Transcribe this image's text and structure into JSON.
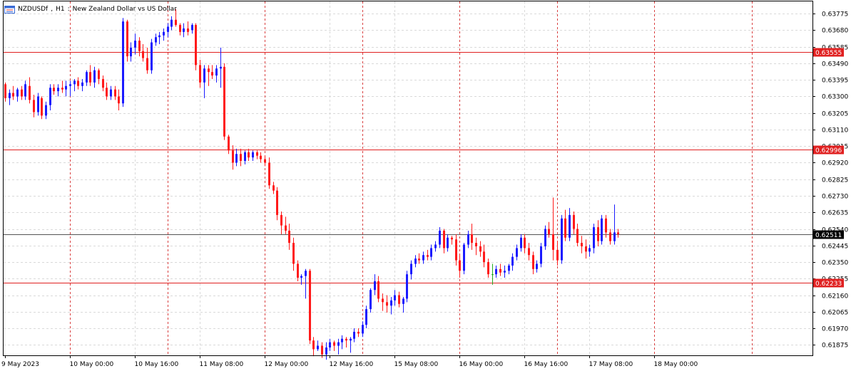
{
  "title": {
    "symbol": "NZDUSDf",
    "timeframe": "H1",
    "description": "New Zealand Dollar vs US Dollar"
  },
  "colors": {
    "bull": "#1a1aff",
    "bear": "#ff1a1a",
    "doji": "#22aa22",
    "grid": "#d9d9d9",
    "session_line": "#d94040",
    "level_line": "#e02020",
    "level_tag": "#e02020",
    "current_line": "#555555",
    "current_tag": "#000000"
  },
  "chart_data": {
    "type": "candlestick",
    "symbol": "NZDUSDf",
    "timeframe": "H1",
    "ylim": [
      0.61815,
      0.63845
    ],
    "y_ticks": [
      "0.63775",
      "0.63680",
      "0.63585",
      "0.63490",
      "0.63395",
      "0.63300",
      "0.63205",
      "0.63110",
      "0.63015",
      "0.62920",
      "0.62825",
      "0.62730",
      "0.62635",
      "0.62540",
      "0.62445",
      "0.62350",
      "0.62255",
      "0.62160",
      "0.62065",
      "0.61970",
      "0.61875"
    ],
    "x_ticks": [
      {
        "label": "9 May 2023",
        "bar": 0
      },
      {
        "label": "10 May 00:00",
        "bar": 16
      },
      {
        "label": "10 May 16:00",
        "bar": 32
      },
      {
        "label": "11 May 08:00",
        "bar": 48
      },
      {
        "label": "12 May 00:00",
        "bar": 64
      },
      {
        "label": "12 May 16:00",
        "bar": 80
      },
      {
        "label": "15 May 08:00",
        "bar": 96
      },
      {
        "label": "16 May 00:00",
        "bar": 112
      },
      {
        "label": "16 May 16:00",
        "bar": 128
      },
      {
        "label": "17 May 08:00",
        "bar": 144
      },
      {
        "label": "18 May 00:00",
        "bar": 160
      }
    ],
    "session_separators": [
      16,
      40,
      64,
      88,
      112,
      136,
      160,
      184
    ],
    "horizontal_levels": [
      {
        "label": "0.63555",
        "value": 0.63555
      },
      {
        "label": "0.62996",
        "value": 0.62996
      },
      {
        "label": "0.62233",
        "value": 0.62233
      }
    ],
    "current_price": {
      "label": "0.62511",
      "value": 0.62511
    },
    "candles": [
      [
        0.6337,
        0.6338,
        0.6327,
        0.6329
      ],
      [
        0.6329,
        0.6334,
        0.6325,
        0.6332
      ],
      [
        0.6332,
        0.6336,
        0.6328,
        0.633
      ],
      [
        0.633,
        0.6335,
        0.6327,
        0.6334
      ],
      [
        0.6334,
        0.6336,
        0.6328,
        0.633
      ],
      [
        0.633,
        0.6339,
        0.6328,
        0.6337
      ],
      [
        0.6336,
        0.6341,
        0.6326,
        0.6328
      ],
      [
        0.6328,
        0.6331,
        0.6318,
        0.6321
      ],
      [
        0.6321,
        0.6332,
        0.6319,
        0.633
      ],
      [
        0.6329,
        0.633,
        0.6317,
        0.6319
      ],
      [
        0.6319,
        0.6327,
        0.6317,
        0.6325
      ],
      [
        0.6325,
        0.6337,
        0.6322,
        0.6335
      ],
      [
        0.6335,
        0.6337,
        0.6331,
        0.6333
      ],
      [
        0.6333,
        0.6337,
        0.633,
        0.6335
      ],
      [
        0.6335,
        0.6339,
        0.6332,
        0.6334
      ],
      [
        0.6334,
        0.6339,
        0.633,
        0.6336
      ],
      [
        0.6336,
        0.6339,
        0.633,
        0.6337
      ],
      [
        0.6337,
        0.634,
        0.6333,
        0.6339
      ],
      [
        0.6339,
        0.6341,
        0.6334,
        0.6336
      ],
      [
        0.6336,
        0.634,
        0.6333,
        0.6338
      ],
      [
        0.6338,
        0.6345,
        0.6336,
        0.6344
      ],
      [
        0.6344,
        0.6348,
        0.6336,
        0.6338
      ],
      [
        0.6338,
        0.6347,
        0.6335,
        0.6345
      ],
      [
        0.6345,
        0.6346,
        0.6337,
        0.634
      ],
      [
        0.634,
        0.6342,
        0.6333,
        0.6335
      ],
      [
        0.6335,
        0.6338,
        0.6328,
        0.633
      ],
      [
        0.633,
        0.6336,
        0.6328,
        0.6334
      ],
      [
        0.6334,
        0.6336,
        0.6328,
        0.633
      ],
      [
        0.633,
        0.6334,
        0.6322,
        0.6326
      ],
      [
        0.6326,
        0.6375,
        0.6324,
        0.6373
      ],
      [
        0.6373,
        0.6374,
        0.635,
        0.6353
      ],
      [
        0.6353,
        0.6361,
        0.635,
        0.6358
      ],
      [
        0.6358,
        0.6366,
        0.6354,
        0.6362
      ],
      [
        0.6362,
        0.6364,
        0.6353,
        0.6356
      ],
      [
        0.6356,
        0.636,
        0.635,
        0.6352
      ],
      [
        0.6352,
        0.6358,
        0.6343,
        0.6345
      ],
      [
        0.6345,
        0.6363,
        0.6343,
        0.6361
      ],
      [
        0.6361,
        0.6366,
        0.6359,
        0.6364
      ],
      [
        0.6364,
        0.6367,
        0.636,
        0.6365
      ],
      [
        0.6365,
        0.6369,
        0.6362,
        0.6367
      ],
      [
        0.6367,
        0.6372,
        0.6364,
        0.637
      ],
      [
        0.637,
        0.6376,
        0.6368,
        0.6374
      ],
      [
        0.6374,
        0.638,
        0.637,
        0.6371
      ],
      [
        0.6371,
        0.6372,
        0.6365,
        0.6367
      ],
      [
        0.6367,
        0.6372,
        0.6364,
        0.6369
      ],
      [
        0.6369,
        0.6373,
        0.6365,
        0.6367
      ],
      [
        0.6368,
        0.6372,
        0.6366,
        0.6371
      ],
      [
        0.6371,
        0.6372,
        0.6345,
        0.6348
      ],
      [
        0.6348,
        0.6351,
        0.6335,
        0.6338
      ],
      [
        0.6338,
        0.6348,
        0.6329,
        0.6346
      ],
      [
        0.6346,
        0.6348,
        0.6336,
        0.6344
      ],
      [
        0.6344,
        0.6348,
        0.634,
        0.6342
      ],
      [
        0.6342,
        0.6348,
        0.6338,
        0.6346
      ],
      [
        0.6346,
        0.6358,
        0.6335,
        0.6347
      ],
      [
        0.6347,
        0.6349,
        0.6305,
        0.6307
      ],
      [
        0.6307,
        0.6308,
        0.6297,
        0.6299
      ],
      [
        0.6299,
        0.6302,
        0.6288,
        0.6292
      ],
      [
        0.6292,
        0.63,
        0.629,
        0.6297
      ],
      [
        0.6297,
        0.63,
        0.629,
        0.6293
      ],
      [
        0.6293,
        0.6299,
        0.6291,
        0.6298
      ],
      [
        0.6298,
        0.63,
        0.6293,
        0.6295
      ],
      [
        0.6295,
        0.6299,
        0.6293,
        0.6298
      ],
      [
        0.6298,
        0.6299,
        0.6294,
        0.6296
      ],
      [
        0.6296,
        0.6298,
        0.6292,
        0.6294
      ],
      [
        0.6294,
        0.6296,
        0.629,
        0.6292
      ],
      [
        0.6292,
        0.6295,
        0.6277,
        0.6279
      ],
      [
        0.6279,
        0.6281,
        0.6274,
        0.6276
      ],
      [
        0.6276,
        0.6278,
        0.6259,
        0.6262
      ],
      [
        0.6262,
        0.6264,
        0.6251,
        0.6256
      ],
      [
        0.6256,
        0.6261,
        0.6251,
        0.6253
      ],
      [
        0.6253,
        0.6257,
        0.6242,
        0.6246
      ],
      [
        0.6246,
        0.6249,
        0.623,
        0.6234
      ],
      [
        0.6234,
        0.6236,
        0.6224,
        0.6226
      ],
      [
        0.6226,
        0.6228,
        0.6222,
        0.6227
      ],
      [
        0.6227,
        0.6231,
        0.6214,
        0.623
      ],
      [
        0.623,
        0.6231,
        0.6188,
        0.619
      ],
      [
        0.619,
        0.6192,
        0.6181,
        0.6185
      ],
      [
        0.6185,
        0.619,
        0.6184,
        0.6187
      ],
      [
        0.6187,
        0.6189,
        0.618,
        0.6182
      ],
      [
        0.6182,
        0.6189,
        0.6179,
        0.6186
      ],
      [
        0.6186,
        0.6191,
        0.6184,
        0.6189
      ],
      [
        0.6189,
        0.619,
        0.6184,
        0.6187
      ],
      [
        0.6187,
        0.6191,
        0.6182,
        0.6189
      ],
      [
        0.6189,
        0.6193,
        0.6185,
        0.6191
      ],
      [
        0.6191,
        0.6192,
        0.6186,
        0.619
      ],
      [
        0.619,
        0.6192,
        0.6183,
        0.6191
      ],
      [
        0.6191,
        0.6197,
        0.6189,
        0.6195
      ],
      [
        0.6195,
        0.6197,
        0.6192,
        0.6194
      ],
      [
        0.6194,
        0.6201,
        0.6192,
        0.6199
      ],
      [
        0.6199,
        0.621,
        0.6197,
        0.6208
      ],
      [
        0.6208,
        0.622,
        0.6206,
        0.6219
      ],
      [
        0.6219,
        0.6228,
        0.6216,
        0.6224
      ],
      [
        0.6224,
        0.6227,
        0.6212,
        0.6214
      ],
      [
        0.6214,
        0.6217,
        0.6207,
        0.6212
      ],
      [
        0.6212,
        0.6216,
        0.6206,
        0.621
      ],
      [
        0.621,
        0.6215,
        0.6205,
        0.6213
      ],
      [
        0.6213,
        0.6219,
        0.621,
        0.6216
      ],
      [
        0.6216,
        0.6218,
        0.6209,
        0.6211
      ],
      [
        0.6211,
        0.6215,
        0.6206,
        0.6214
      ],
      [
        0.6214,
        0.623,
        0.6212,
        0.6228
      ],
      [
        0.6228,
        0.6236,
        0.6225,
        0.6234
      ],
      [
        0.6234,
        0.6239,
        0.6232,
        0.6237
      ],
      [
        0.6237,
        0.624,
        0.6234,
        0.6236
      ],
      [
        0.6236,
        0.6241,
        0.6234,
        0.6239
      ],
      [
        0.6239,
        0.6242,
        0.6236,
        0.6238
      ],
      [
        0.6238,
        0.6245,
        0.6236,
        0.6243
      ],
      [
        0.6243,
        0.6247,
        0.6241,
        0.6245
      ],
      [
        0.6245,
        0.6255,
        0.6243,
        0.6253
      ],
      [
        0.6253,
        0.6254,
        0.624,
        0.6243
      ],
      [
        0.6243,
        0.6251,
        0.6241,
        0.6249
      ],
      [
        0.6249,
        0.625,
        0.6245,
        0.6248
      ],
      [
        0.6248,
        0.6251,
        0.6233,
        0.6236
      ],
      [
        0.6236,
        0.6239,
        0.6226,
        0.623
      ],
      [
        0.623,
        0.6246,
        0.6228,
        0.6245
      ],
      [
        0.6245,
        0.6253,
        0.6243,
        0.6251
      ],
      [
        0.6251,
        0.6257,
        0.6242,
        0.6246
      ],
      [
        0.6246,
        0.6249,
        0.6239,
        0.6244
      ],
      [
        0.6244,
        0.6247,
        0.6238,
        0.6241
      ],
      [
        0.6241,
        0.6245,
        0.6232,
        0.6235
      ],
      [
        0.6235,
        0.6237,
        0.6226,
        0.6228
      ],
      [
        0.6228,
        0.6234,
        0.6222,
        0.6228
      ],
      [
        0.6228,
        0.6233,
        0.6226,
        0.6231
      ],
      [
        0.6231,
        0.6234,
        0.6227,
        0.6229
      ],
      [
        0.6229,
        0.6233,
        0.6226,
        0.623
      ],
      [
        0.623,
        0.6234,
        0.6228,
        0.6233
      ],
      [
        0.6233,
        0.624,
        0.623,
        0.6238
      ],
      [
        0.6238,
        0.6245,
        0.6236,
        0.6243
      ],
      [
        0.6243,
        0.6251,
        0.6241,
        0.6249
      ],
      [
        0.6249,
        0.6251,
        0.624,
        0.6243
      ],
      [
        0.6243,
        0.6246,
        0.6236,
        0.6239
      ],
      [
        0.6239,
        0.6241,
        0.6228,
        0.6231
      ],
      [
        0.6231,
        0.6236,
        0.6229,
        0.6234
      ],
      [
        0.6234,
        0.6246,
        0.6232,
        0.6244
      ],
      [
        0.6244,
        0.6256,
        0.6242,
        0.6254
      ],
      [
        0.6254,
        0.6258,
        0.6249,
        0.6251
      ],
      [
        0.6251,
        0.6272,
        0.6236,
        0.6242
      ],
      [
        0.6242,
        0.6247,
        0.6233,
        0.6236
      ],
      [
        0.6236,
        0.6262,
        0.6234,
        0.626
      ],
      [
        0.626,
        0.6265,
        0.6247,
        0.6249
      ],
      [
        0.6249,
        0.6266,
        0.6247,
        0.6262
      ],
      [
        0.6262,
        0.6264,
        0.6251,
        0.6254
      ],
      [
        0.6254,
        0.6257,
        0.6244,
        0.6246
      ],
      [
        0.6246,
        0.625,
        0.624,
        0.6244
      ],
      [
        0.6244,
        0.6248,
        0.6237,
        0.6241
      ],
      [
        0.6241,
        0.6245,
        0.6238,
        0.6243
      ],
      [
        0.6243,
        0.6257,
        0.624,
        0.6255
      ],
      [
        0.6255,
        0.6259,
        0.6244,
        0.6247
      ],
      [
        0.6247,
        0.6262,
        0.6245,
        0.626
      ],
      [
        0.626,
        0.6262,
        0.6249,
        0.6252
      ],
      [
        0.6252,
        0.6254,
        0.6245,
        0.6247
      ],
      [
        0.6247,
        0.6268,
        0.6245,
        0.6252
      ],
      [
        0.6252,
        0.6254,
        0.6249,
        0.6251
      ]
    ]
  }
}
